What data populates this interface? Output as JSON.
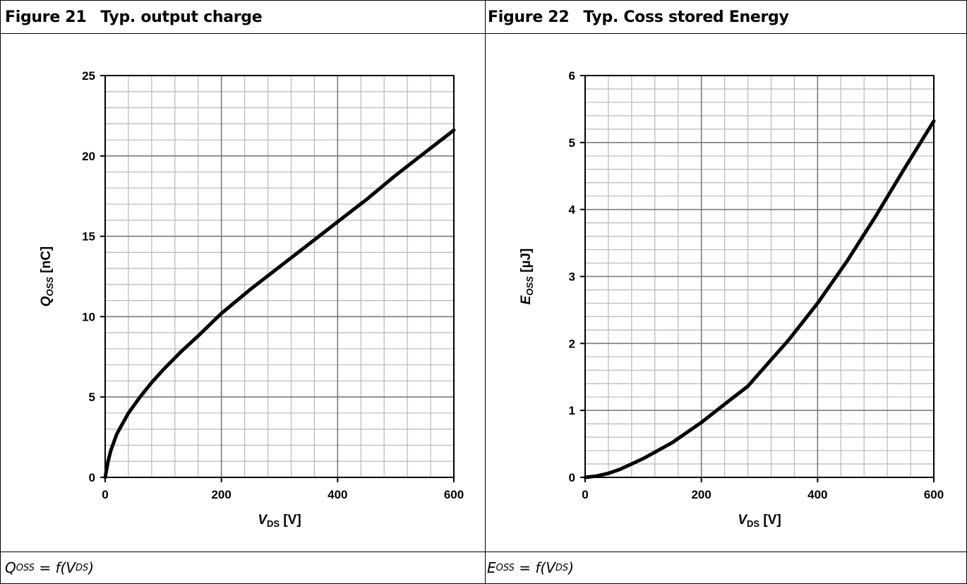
{
  "figures": [
    {
      "number": "Figure 21",
      "title": "Typ. output charge",
      "caption": {
        "var": "Q",
        "var_sub": "OSS",
        "eq": " = f(V",
        "arg_sub": "DS",
        "close": ")"
      },
      "chart_data": {
        "type": "line",
        "xlabel": {
          "main": "V",
          "sub": "DS",
          "unit": " [V]"
        },
        "ylabel": {
          "main": "Q",
          "sub": "OSS",
          "unit": " [nC]"
        },
        "xlim": [
          0,
          600
        ],
        "ylim": [
          0,
          25
        ],
        "x_ticks": [
          0,
          200,
          400,
          600
        ],
        "y_ticks": [
          0,
          5,
          10,
          15,
          20,
          25
        ],
        "x_minor": 40,
        "y_minor": 1,
        "grid": true,
        "series": [
          {
            "x": [
              0,
              5,
              10,
              20,
              40,
              60,
              80,
              100,
              130,
              160,
              200,
              250,
              300,
              350,
              400,
              450,
              500,
              550,
              600
            ],
            "y": [
              0,
              1.0,
              1.7,
              2.7,
              4.0,
              5.0,
              5.9,
              6.7,
              7.8,
              8.8,
              10.2,
              11.7,
              13.1,
              14.5,
              15.9,
              17.3,
              18.8,
              20.2,
              21.6
            ]
          }
        ]
      }
    },
    {
      "number": "Figure 22",
      "title": "Typ. Coss stored Energy",
      "caption": {
        "var": "E",
        "var_sub": "OSS",
        "eq": " = f(V",
        "arg_sub": "DS",
        "close": ")"
      },
      "chart_data": {
        "type": "line",
        "xlabel": {
          "main": "V",
          "sub": "DS",
          "unit": " [V]"
        },
        "ylabel": {
          "main": "E",
          "sub": "OSS",
          "unit": " [µJ]"
        },
        "xlim": [
          0,
          600
        ],
        "ylim": [
          0,
          6
        ],
        "x_ticks": [
          0,
          200,
          400,
          600
        ],
        "y_ticks": [
          0,
          1,
          2,
          3,
          4,
          5,
          6
        ],
        "x_minor": 40,
        "y_minor": 0.2,
        "grid": true,
        "series": [
          {
            "x": [
              0,
              20,
              40,
              60,
              100,
              150,
              200,
              250,
              280,
              300,
              350,
              400,
              450,
              500,
              550,
              600
            ],
            "y": [
              0,
              0.02,
              0.06,
              0.12,
              0.28,
              0.52,
              0.82,
              1.16,
              1.36,
              1.56,
              2.05,
              2.6,
              3.22,
              3.9,
              4.62,
              5.32
            ]
          }
        ]
      }
    }
  ]
}
